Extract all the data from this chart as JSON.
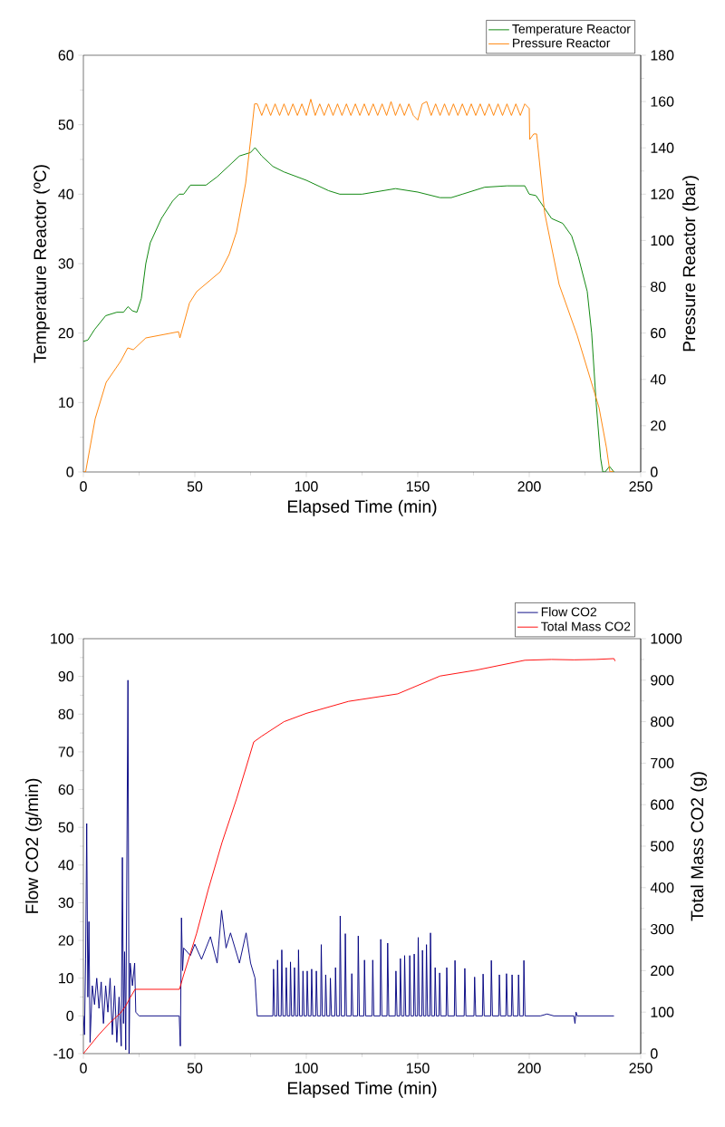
{
  "chart_data": [
    {
      "type": "line",
      "xlabel": "Elapsed Time (min)",
      "ylabel": "Temperature Reactor (ºC)",
      "y2label": "Pressure Reactor (bar)",
      "xlim": [
        0,
        250
      ],
      "xticks": [
        0,
        50,
        100,
        150,
        200,
        250
      ],
      "ylim": [
        0,
        60
      ],
      "yticks": [
        0,
        10,
        20,
        30,
        40,
        50,
        60
      ],
      "y2lim": [
        0,
        180
      ],
      "y2ticks": [
        0,
        20,
        40,
        60,
        80,
        100,
        120,
        140,
        160,
        180
      ],
      "legend": "top right",
      "series": [
        {
          "name": "Temperature Reactor",
          "color": "#008000",
          "axis": "y",
          "x": [
            0,
            2,
            5,
            10,
            15,
            18,
            20,
            22,
            24,
            26,
            28,
            30,
            35,
            40,
            43,
            45,
            48,
            55,
            60,
            65,
            70,
            75,
            77,
            80,
            85,
            90,
            100,
            110,
            115,
            125,
            140,
            150,
            160,
            165,
            170,
            180,
            190,
            198,
            200,
            203,
            210,
            215,
            219,
            222,
            226,
            228,
            230,
            232,
            233,
            234,
            236,
            238
          ],
          "values": [
            18.8,
            19,
            20.5,
            22.5,
            23,
            23,
            23.8,
            23.2,
            23,
            25,
            30,
            33,
            36.5,
            39,
            40,
            40,
            41.3,
            41.3,
            42.5,
            44,
            45.5,
            46,
            46.7,
            45.5,
            44,
            43.2,
            42,
            40.5,
            40,
            40,
            40.8,
            40.3,
            39.5,
            39.5,
            40,
            41,
            41.2,
            41.2,
            40,
            39.8,
            36.5,
            35.8,
            34,
            31,
            26,
            20,
            10,
            2,
            0,
            0,
            0.8,
            0
          ]
        },
        {
          "name": "Pressure Reactor",
          "color": "#ff8000",
          "axis": "y2",
          "x": [
            0,
            1,
            5.3,
            10.2,
            16.7,
            19.9,
            22.4,
            28,
            42.7,
            43.3,
            47.6,
            50.8,
            61.4,
            65.4,
            68.7,
            72.8,
            75.2,
            76.8,
            78,
            80,
            82,
            84,
            86,
            88,
            90,
            92,
            94,
            96,
            98,
            100,
            102,
            104,
            106,
            108,
            110,
            112,
            114,
            116,
            118,
            120,
            122,
            124,
            126,
            128,
            130,
            132,
            134,
            136,
            138,
            140,
            142,
            144,
            146,
            148,
            150,
            152,
            154,
            156,
            158,
            160,
            162,
            164,
            166,
            168,
            170,
            172,
            174,
            176,
            178,
            180,
            182,
            184,
            186,
            188,
            190,
            192,
            194,
            196,
            198,
            200,
            200.2,
            202,
            203.3,
            206.9,
            213.4,
            221.5,
            226.4,
            231.3,
            234.6,
            236.2,
            237.8
          ],
          "values": [
            0,
            0,
            23,
            38.7,
            47.8,
            53.6,
            52.8,
            57.9,
            60.6,
            57.9,
            73,
            77.9,
            86.5,
            94,
            103.7,
            124.8,
            145,
            159,
            159,
            154,
            159,
            154,
            159,
            154,
            159,
            154,
            159,
            154,
            159,
            154,
            161,
            154,
            159,
            154,
            159,
            154,
            159,
            154,
            159,
            154,
            159,
            154,
            159,
            154,
            159,
            154,
            159,
            154,
            160,
            154,
            159,
            154,
            159,
            154,
            152,
            159,
            160,
            154,
            159,
            154,
            159,
            154,
            159,
            154,
            159,
            154,
            159,
            154,
            159,
            154,
            159,
            154,
            159,
            154,
            159,
            154,
            159,
            154,
            159,
            157,
            143.6,
            146,
            146,
            112,
            81,
            59,
            43.4,
            27.8,
            10.6,
            0,
            0.4
          ]
        }
      ]
    },
    {
      "type": "line",
      "xlabel": "Elapsed Time (min)",
      "ylabel": "Flow CO2 (g/min)",
      "y2label": "Total Mass CO2 (g)",
      "xlim": [
        0,
        250
      ],
      "xticks": [
        0,
        50,
        100,
        150,
        200,
        250
      ],
      "ylim": [
        -10,
        100
      ],
      "yticks": [
        -10,
        0,
        10,
        20,
        30,
        40,
        50,
        60,
        70,
        80,
        90,
        100
      ],
      "y2lim": [
        0,
        1000
      ],
      "y2ticks": [
        0,
        100,
        200,
        300,
        400,
        500,
        600,
        700,
        800,
        900,
        1000
      ],
      "legend": "top right",
      "series": [
        {
          "name": "Flow CO2",
          "color": "#000080",
          "axis": "y",
          "x": [
            0,
            0.5,
            1,
            1.5,
            2,
            2.5,
            3,
            4,
            5,
            6,
            7,
            8,
            9,
            10,
            11,
            12,
            13,
            14,
            15,
            16,
            17,
            17.5,
            18,
            18.5,
            19,
            20,
            20.5,
            21,
            22,
            23,
            23.5,
            25,
            43,
            43.5,
            44,
            44.5,
            45,
            48,
            50,
            53,
            57,
            60,
            62,
            64,
            66,
            70,
            73,
            75,
            77,
            78,
            85,
            85.3,
            85.8,
            86.8,
            87.1,
            87.6,
            88.7,
            89.0,
            89.5,
            90.7,
            91.0,
            91.5,
            92.6,
            92.9,
            93.4,
            94.4,
            94.7,
            95.2,
            96.2,
            96.5,
            97.0,
            98.2,
            98.5,
            99.0,
            100.1,
            100.4,
            100.9,
            102.1,
            102.4,
            102.9,
            104.2,
            104.5,
            105.0,
            106.4,
            106.7,
            107.2,
            108.4,
            108.7,
            109.2,
            110.5,
            110.8,
            111.3,
            112.8,
            113.1,
            113.6,
            114.9,
            115.2,
            115.7,
            117.2,
            117.5,
            118.0,
            120.1,
            120.4,
            120.9,
            123.0,
            123.3,
            123.8,
            125.8,
            126.1,
            126.6,
            129.5,
            129.8,
            130.3,
            133.1,
            133.4,
            133.9,
            136.2,
            136.5,
            137.0,
            139.9,
            140.2,
            140.7,
            141.9,
            142.2,
            142.7,
            143.8,
            144.1,
            144.6,
            146.1,
            146.4,
            146.9,
            148.1,
            148.4,
            148.9,
            149.9,
            150.2,
            150.7,
            151.8,
            152.1,
            152.6,
            153.6,
            153.9,
            154.4,
            155.4,
            155.7,
            156.2,
            157.5,
            157.8,
            158.3,
            159.5,
            159.8,
            160.3,
            162.7,
            163.0,
            163.5,
            166.4,
            166.7,
            167.2,
            170.8,
            171.1,
            171.6,
            175.2,
            175.5,
            176.0,
            179.0,
            179.3,
            179.8,
            182.7,
            183.0,
            183.5,
            186.3,
            186.6,
            187.1,
            189.5,
            189.8,
            190.3,
            192.0,
            192.3,
            192.8,
            194.9,
            195.2,
            195.7,
            197.3,
            197.6,
            198.1,
            205,
            208,
            211,
            220,
            220.5,
            221,
            221.5,
            238
          ],
          "values": [
            0,
            -5,
            15,
            51,
            5,
            25,
            -7,
            8,
            3,
            10,
            2,
            9,
            -2,
            8,
            1,
            10,
            -5,
            8,
            -7,
            5,
            -8,
            42,
            -2,
            17,
            -9,
            89,
            -10,
            14,
            8,
            14,
            1,
            0,
            0,
            -8,
            26,
            12,
            18,
            16,
            19,
            15,
            21,
            14,
            28,
            18,
            22,
            14,
            22,
            14,
            10,
            0,
            0,
            12.4,
            0,
            0,
            14.8,
            0,
            0,
            17.5,
            0,
            0,
            12.8,
            0,
            0,
            14.3,
            0,
            0,
            12.8,
            0,
            0,
            17.5,
            0,
            0,
            11.9,
            0,
            0,
            11.9,
            0,
            0,
            12.4,
            0,
            0,
            11.9,
            0,
            0,
            18.9,
            0,
            0,
            10.9,
            0,
            0,
            10,
            0,
            0,
            12.8,
            0,
            0,
            26.5,
            0,
            0,
            21.8,
            0,
            0,
            11.2,
            0,
            0,
            21.2,
            0,
            0,
            14.8,
            0,
            0,
            14.8,
            0,
            0,
            20.3,
            0,
            0,
            19.3,
            0,
            0,
            11.9,
            0,
            0,
            15.2,
            0,
            0,
            16,
            0,
            0,
            16,
            0,
            0,
            16.4,
            0,
            0,
            20.8,
            0,
            0,
            17.4,
            0,
            0,
            18.9,
            0,
            0,
            22,
            0,
            0,
            12.8,
            0,
            0,
            11.4,
            0,
            0,
            12.8,
            0,
            0,
            14.7,
            0,
            0,
            12.6,
            0,
            0,
            10.3,
            0,
            0,
            11.1,
            0,
            0,
            14.7,
            0,
            0,
            10.9,
            0,
            0,
            11.2,
            0,
            0,
            10.9,
            0,
            0,
            10.9,
            0,
            0,
            14.7,
            0,
            0,
            0.5,
            0,
            0,
            -2,
            1,
            0,
            0
          ]
        },
        {
          "name": "Total Mass CO2",
          "color": "#ff0000",
          "axis": "y2",
          "x": [
            0,
            7,
            12,
            16.7,
            19,
            21,
            23.2,
            43.1,
            45,
            50.8,
            56,
            62.2,
            68.7,
            73,
            76.4,
            80,
            90,
            100,
            119,
            141,
            160,
            176,
            198,
            210,
            220,
            230,
            238,
            238.5
          ],
          "values": [
            0,
            46,
            75,
            98,
            115,
            135,
            155,
            155,
            190,
            290,
            395,
            509,
            614,
            690,
            751,
            765,
            800,
            820,
            849,
            867,
            910,
            924,
            948,
            950,
            949,
            950,
            952,
            946
          ]
        }
      ]
    }
  ]
}
